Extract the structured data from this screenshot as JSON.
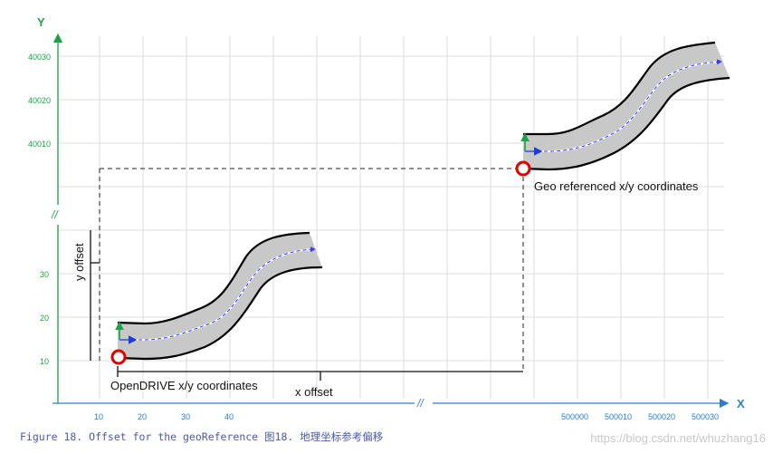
{
  "axes": {
    "x_label": "X",
    "y_label": "Y",
    "x_ticks_left": [
      "10",
      "20",
      "30",
      "40"
    ],
    "x_ticks_right": [
      "500000",
      "500010",
      "500020",
      "500030"
    ],
    "y_ticks_lower": [
      "10",
      "20",
      "30"
    ],
    "y_ticks_upper": [
      "40010",
      "40020",
      "40030"
    ],
    "x_axis_color": "#2a7fd4",
    "y_axis_color": "#1aa34a",
    "break_mark": "//"
  },
  "labels": {
    "opendrive": "OpenDRIVE x/y coordinates",
    "geo": "Geo referenced x/y coordinates",
    "x_offset": "x offset",
    "y_offset": "y offset"
  },
  "colors": {
    "road_fill": "#c8c8c8",
    "road_edge": "#000000",
    "centerline": "#3a3af0",
    "origin_marker": "#e00000",
    "local_x_axis": "#1a3fd6",
    "local_y_axis": "#1aa34a"
  },
  "caption": "Figure 18. Offset for the geoReference 图18. 地理坐标参考偏移",
  "watermark": "https://blog.csdn.net/whuzhang16"
}
